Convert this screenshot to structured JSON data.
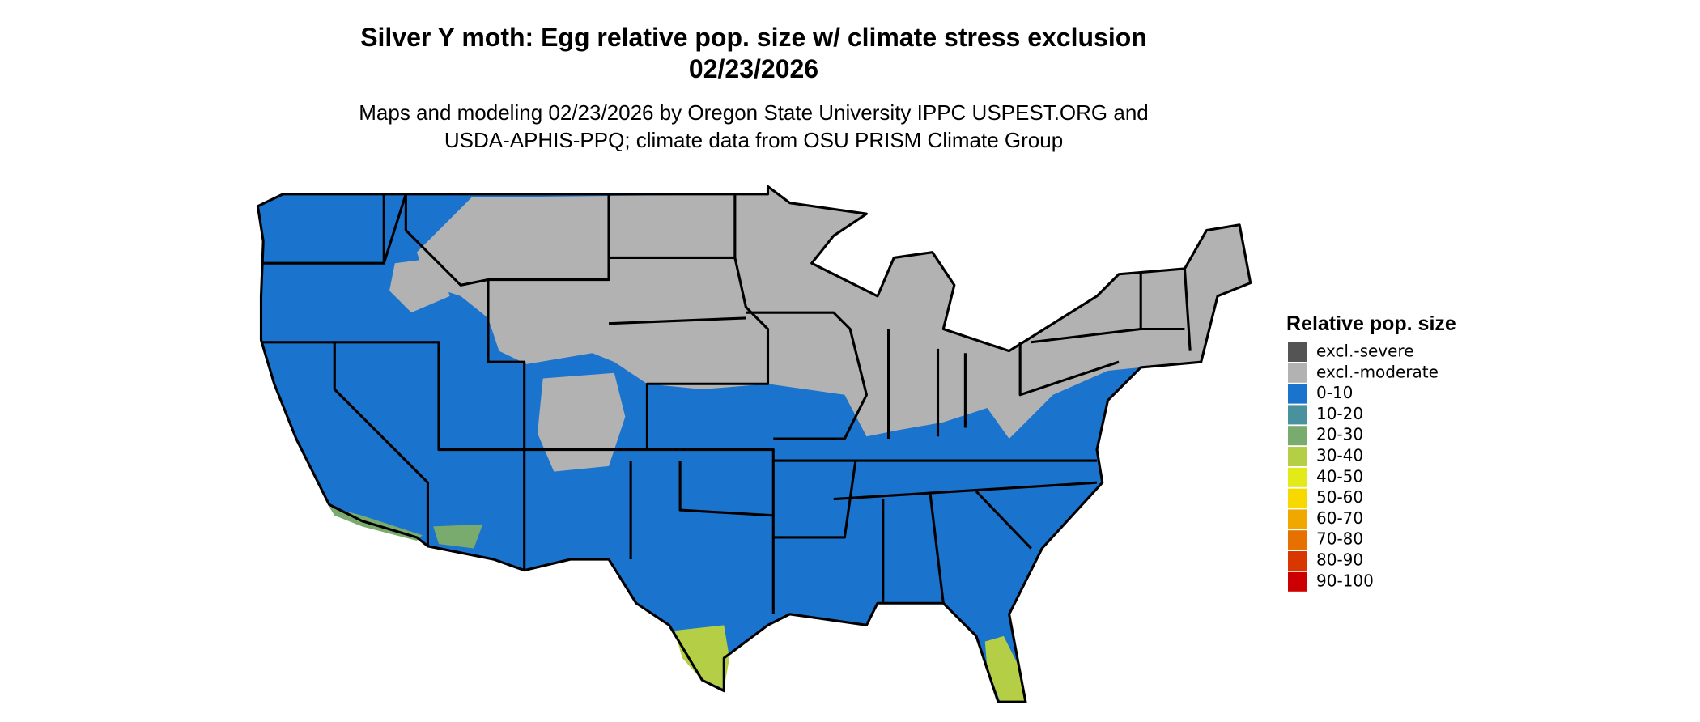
{
  "map": {
    "title": [
      "Silver Y moth: Egg relative pop. size w/ climate stress exclusion",
      "02/23/2026"
    ],
    "subtitle": [
      "Maps and modeling 02/23/2026 by Oregon State University IPPC USPEST.ORG and",
      "USDA-APHIS-PPQ; climate data from OSU PRISM Climate Group"
    ],
    "legend": {
      "title": "Relative pop. size",
      "items": [
        {
          "label": "excl.-severe",
          "color": "#545454"
        },
        {
          "label": "excl.-moderate",
          "color": "#b2b2b2"
        },
        {
          "label": "0-10",
          "color": "#1a73cc"
        },
        {
          "label": "10-20",
          "color": "#4a91a0"
        },
        {
          "label": "20-30",
          "color": "#7aab6e"
        },
        {
          "label": "30-40",
          "color": "#b4cf45"
        },
        {
          "label": "40-50",
          "color": "#e3ea1a"
        },
        {
          "label": "50-60",
          "color": "#f7d900"
        },
        {
          "label": "60-70",
          "color": "#f0a800"
        },
        {
          "label": "70-80",
          "color": "#e67000"
        },
        {
          "label": "80-90",
          "color": "#d83800"
        },
        {
          "label": "90-100",
          "color": "#cc0000"
        }
      ]
    }
  }
}
